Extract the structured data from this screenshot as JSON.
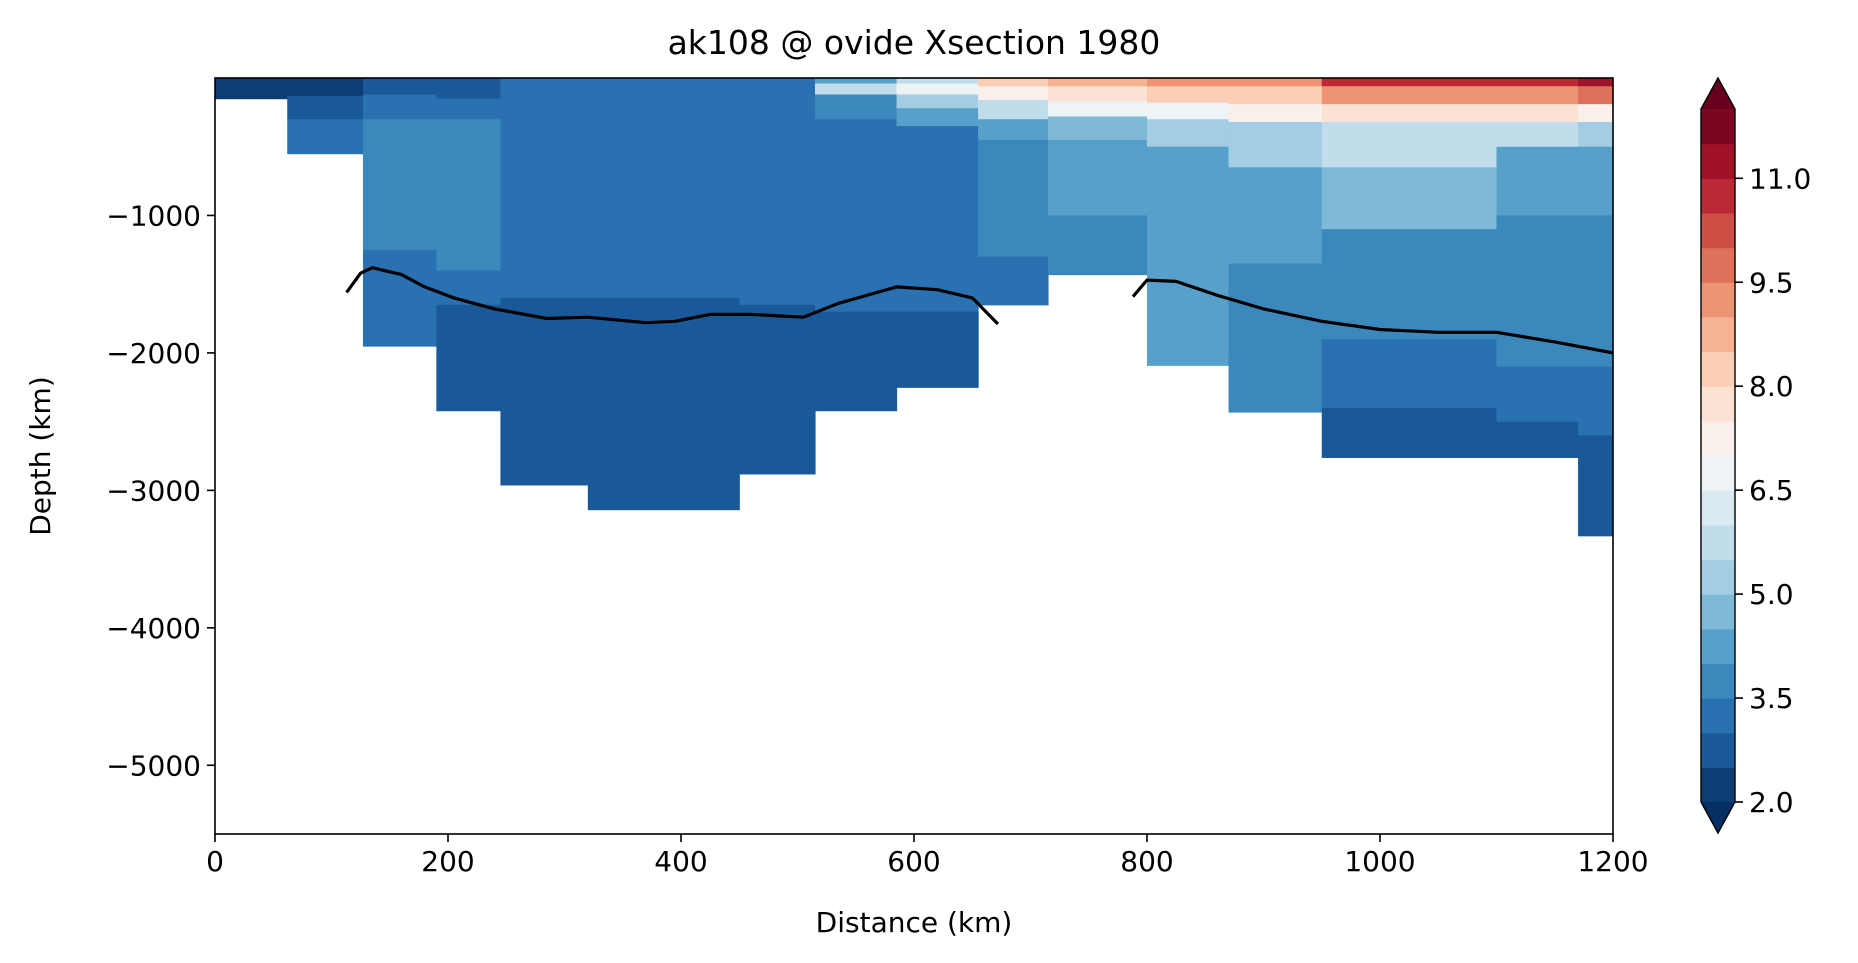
{
  "chart_data": {
    "type": "heatmap",
    "title": "ak108 @ ovide Xsection 1980",
    "xlabel": "Distance (km)",
    "ylabel": "Depth (km)",
    "xlim": [
      0,
      1200
    ],
    "ylim": [
      -5500,
      0
    ],
    "xticks": [
      0,
      200,
      400,
      600,
      800,
      1000,
      1200
    ],
    "yticks": [
      -1000,
      -2000,
      -3000,
      -4000,
      -5000
    ],
    "colorbar": {
      "levels_min": 2.0,
      "levels_max": 12.0,
      "level_step": 0.5,
      "extend": "both",
      "colormap": "RdBu_r",
      "ticks": [
        2.0,
        3.5,
        5.0,
        6.5,
        8.0,
        9.5,
        11.0
      ]
    },
    "cross_section_columns": [
      {
        "x0": 0,
        "x1": 62,
        "bottom": -150,
        "layers": [
          [
            -150,
            2.2
          ]
        ]
      },
      {
        "x0": 62,
        "x1": 127,
        "bottom": -550,
        "layers": [
          [
            -130,
            2.3
          ],
          [
            -300,
            2.8
          ],
          [
            -550,
            3.2
          ]
        ]
      },
      {
        "x0": 127,
        "x1": 190,
        "bottom": -1950,
        "layers": [
          [
            -120,
            2.6
          ],
          [
            -300,
            3.0
          ],
          [
            -1250,
            3.8
          ],
          [
            -1950,
            3.3
          ]
        ]
      },
      {
        "x0": 190,
        "x1": 245,
        "bottom": -2420,
        "layers": [
          [
            -150,
            2.8
          ],
          [
            -300,
            3.1
          ],
          [
            -850,
            3.7
          ],
          [
            -1400,
            3.5
          ],
          [
            -1650,
            3.1
          ],
          [
            -2420,
            2.8
          ]
        ]
      },
      {
        "x0": 245,
        "x1": 320,
        "bottom": -2960,
        "layers": [
          [
            -150,
            3.0
          ],
          [
            -1400,
            3.4
          ],
          [
            -1600,
            3.0
          ],
          [
            -2960,
            2.8
          ]
        ]
      },
      {
        "x0": 320,
        "x1": 450,
        "bottom": -3140,
        "layers": [
          [
            -150,
            3.1
          ],
          [
            -1400,
            3.4
          ],
          [
            -1600,
            3.0
          ],
          [
            -3140,
            2.8
          ]
        ]
      },
      {
        "x0": 450,
        "x1": 515,
        "bottom": -2880,
        "layers": [
          [
            -150,
            3.0
          ],
          [
            -550,
            3.2
          ],
          [
            -1400,
            3.4
          ],
          [
            -1650,
            3.0
          ],
          [
            -2880,
            2.8
          ]
        ]
      },
      {
        "x0": 515,
        "x1": 585,
        "bottom": -2420,
        "layers": [
          [
            -40,
            4.4
          ],
          [
            -120,
            5.6
          ],
          [
            -300,
            3.6
          ],
          [
            -1400,
            3.4
          ],
          [
            -1700,
            3.0
          ],
          [
            -2420,
            2.8
          ]
        ]
      },
      {
        "x0": 585,
        "x1": 655,
        "bottom": -2250,
        "layers": [
          [
            -40,
            5.5
          ],
          [
            -120,
            6.8
          ],
          [
            -220,
            5.3
          ],
          [
            -350,
            4.0
          ],
          [
            -1400,
            3.4
          ],
          [
            -1700,
            3.0
          ],
          [
            -2250,
            2.8
          ]
        ]
      },
      {
        "x0": 655,
        "x1": 715,
        "bottom": -1650,
        "layers": [
          [
            -60,
            8.4
          ],
          [
            -160,
            7.3
          ],
          [
            -300,
            5.6
          ],
          [
            -450,
            4.3
          ],
          [
            -1300,
            3.7
          ],
          [
            -1650,
            3.3
          ]
        ]
      },
      {
        "x0": 715,
        "x1": 800,
        "bottom": -1430,
        "layers": [
          [
            -60,
            8.6
          ],
          [
            -170,
            7.6
          ],
          [
            -280,
            6.5
          ],
          [
            -450,
            4.9
          ],
          [
            -1000,
            4.1
          ],
          [
            -1430,
            3.9
          ]
        ]
      },
      {
        "x0": 800,
        "x1": 870,
        "bottom": -2090,
        "layers": [
          [
            -60,
            9.0
          ],
          [
            -180,
            8.1
          ],
          [
            -300,
            6.9
          ],
          [
            -500,
            5.2
          ],
          [
            -1000,
            4.4
          ],
          [
            -2090,
            4.1
          ]
        ]
      },
      {
        "x0": 870,
        "x1": 950,
        "bottom": -2430,
        "layers": [
          [
            -60,
            9.3
          ],
          [
            -190,
            8.3
          ],
          [
            -320,
            7.1
          ],
          [
            -650,
            5.1
          ],
          [
            -1350,
            4.4
          ],
          [
            -2000,
            3.8
          ],
          [
            -2430,
            3.5
          ]
        ]
      },
      {
        "x0": 950,
        "x1": 1100,
        "bottom": -2760,
        "layers": [
          [
            -60,
            10.6
          ],
          [
            -190,
            9.4
          ],
          [
            -320,
            7.6
          ],
          [
            -650,
            5.6
          ],
          [
            -1100,
            4.5
          ],
          [
            -1900,
            3.9
          ],
          [
            -2400,
            3.3
          ],
          [
            -2760,
            2.9
          ]
        ]
      },
      {
        "x0": 1100,
        "x1": 1170,
        "bottom": -2760,
        "layers": [
          [
            -60,
            10.6
          ],
          [
            -190,
            9.4
          ],
          [
            -320,
            7.5
          ],
          [
            -500,
            5.6
          ],
          [
            -1000,
            4.2
          ],
          [
            -2100,
            3.7
          ],
          [
            -2500,
            3.3
          ],
          [
            -2760,
            2.9
          ]
        ]
      },
      {
        "x0": 1170,
        "x1": 1200,
        "bottom": -3330,
        "layers": [
          [
            -60,
            11.2
          ],
          [
            -190,
            9.6
          ],
          [
            -320,
            7.1
          ],
          [
            -500,
            5.2
          ],
          [
            -1000,
            4.3
          ],
          [
            -2100,
            3.6
          ],
          [
            -2600,
            3.2
          ],
          [
            -3330,
            2.9
          ]
        ]
      }
    ],
    "contour_line": {
      "segments": [
        {
          "x": [
            113,
            125,
            135,
            160,
            180,
            205,
            240,
            285,
            320,
            370,
            395,
            425,
            460,
            505,
            535,
            585,
            620,
            650,
            672
          ],
          "y": [
            -1560,
            -1420,
            -1380,
            -1430,
            -1520,
            -1600,
            -1680,
            -1750,
            -1740,
            -1780,
            -1770,
            -1720,
            -1720,
            -1740,
            -1640,
            -1520,
            -1540,
            -1600,
            -1790
          ]
        },
        {
          "x": [
            788,
            800,
            825,
            860,
            900,
            950,
            1000,
            1050,
            1100,
            1150,
            1200
          ],
          "y": [
            -1590,
            -1470,
            -1480,
            -1580,
            -1680,
            -1770,
            -1830,
            -1850,
            -1850,
            -1920,
            -2000
          ]
        }
      ]
    }
  }
}
